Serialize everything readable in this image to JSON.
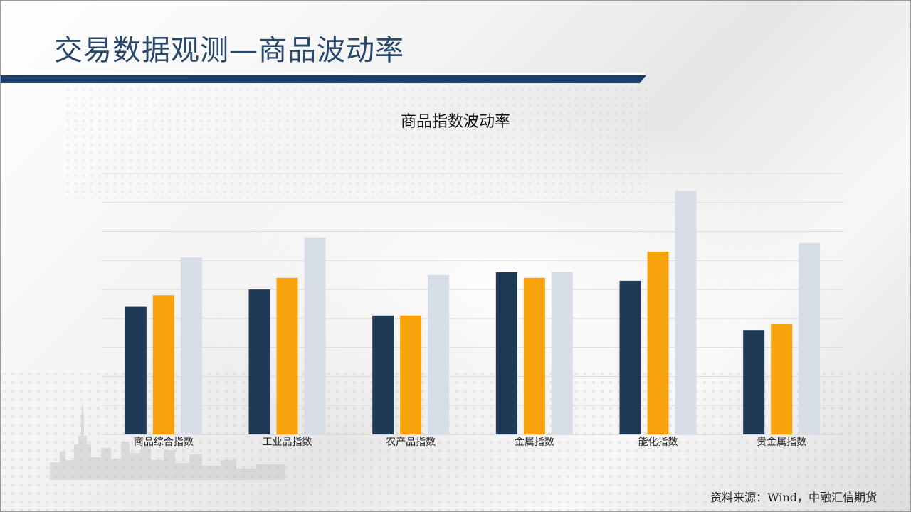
{
  "header": {
    "title": "交易数据观测—商品波动率"
  },
  "colors": {
    "title_text": "#27476b",
    "header_bar": "#1d3d6d",
    "series_1": "#1f3a57",
    "series_2": "#f8a30b",
    "series_3": "#d6dde6"
  },
  "chart_data": {
    "type": "bar",
    "title": "商品指数波动率",
    "xlabel": "",
    "ylabel": "",
    "grid": true,
    "y_axis_labels_shown": false,
    "legend": "none",
    "ylim": [
      0,
      9
    ],
    "categories": [
      "商品综合指数",
      "工业品指数",
      "农产品指数",
      "金属指数",
      "能化指数",
      "贵金属指数"
    ],
    "series": [
      {
        "values": [
          4.4,
          5.0,
          4.1,
          5.6,
          5.3,
          3.6
        ]
      },
      {
        "values": [
          4.8,
          5.4,
          4.1,
          5.4,
          6.3,
          3.8
        ]
      },
      {
        "values": [
          6.1,
          6.8,
          5.5,
          5.6,
          8.4,
          6.6
        ]
      }
    ]
  },
  "footer": {
    "source": "资料来源：Wind，中融汇信期货"
  }
}
